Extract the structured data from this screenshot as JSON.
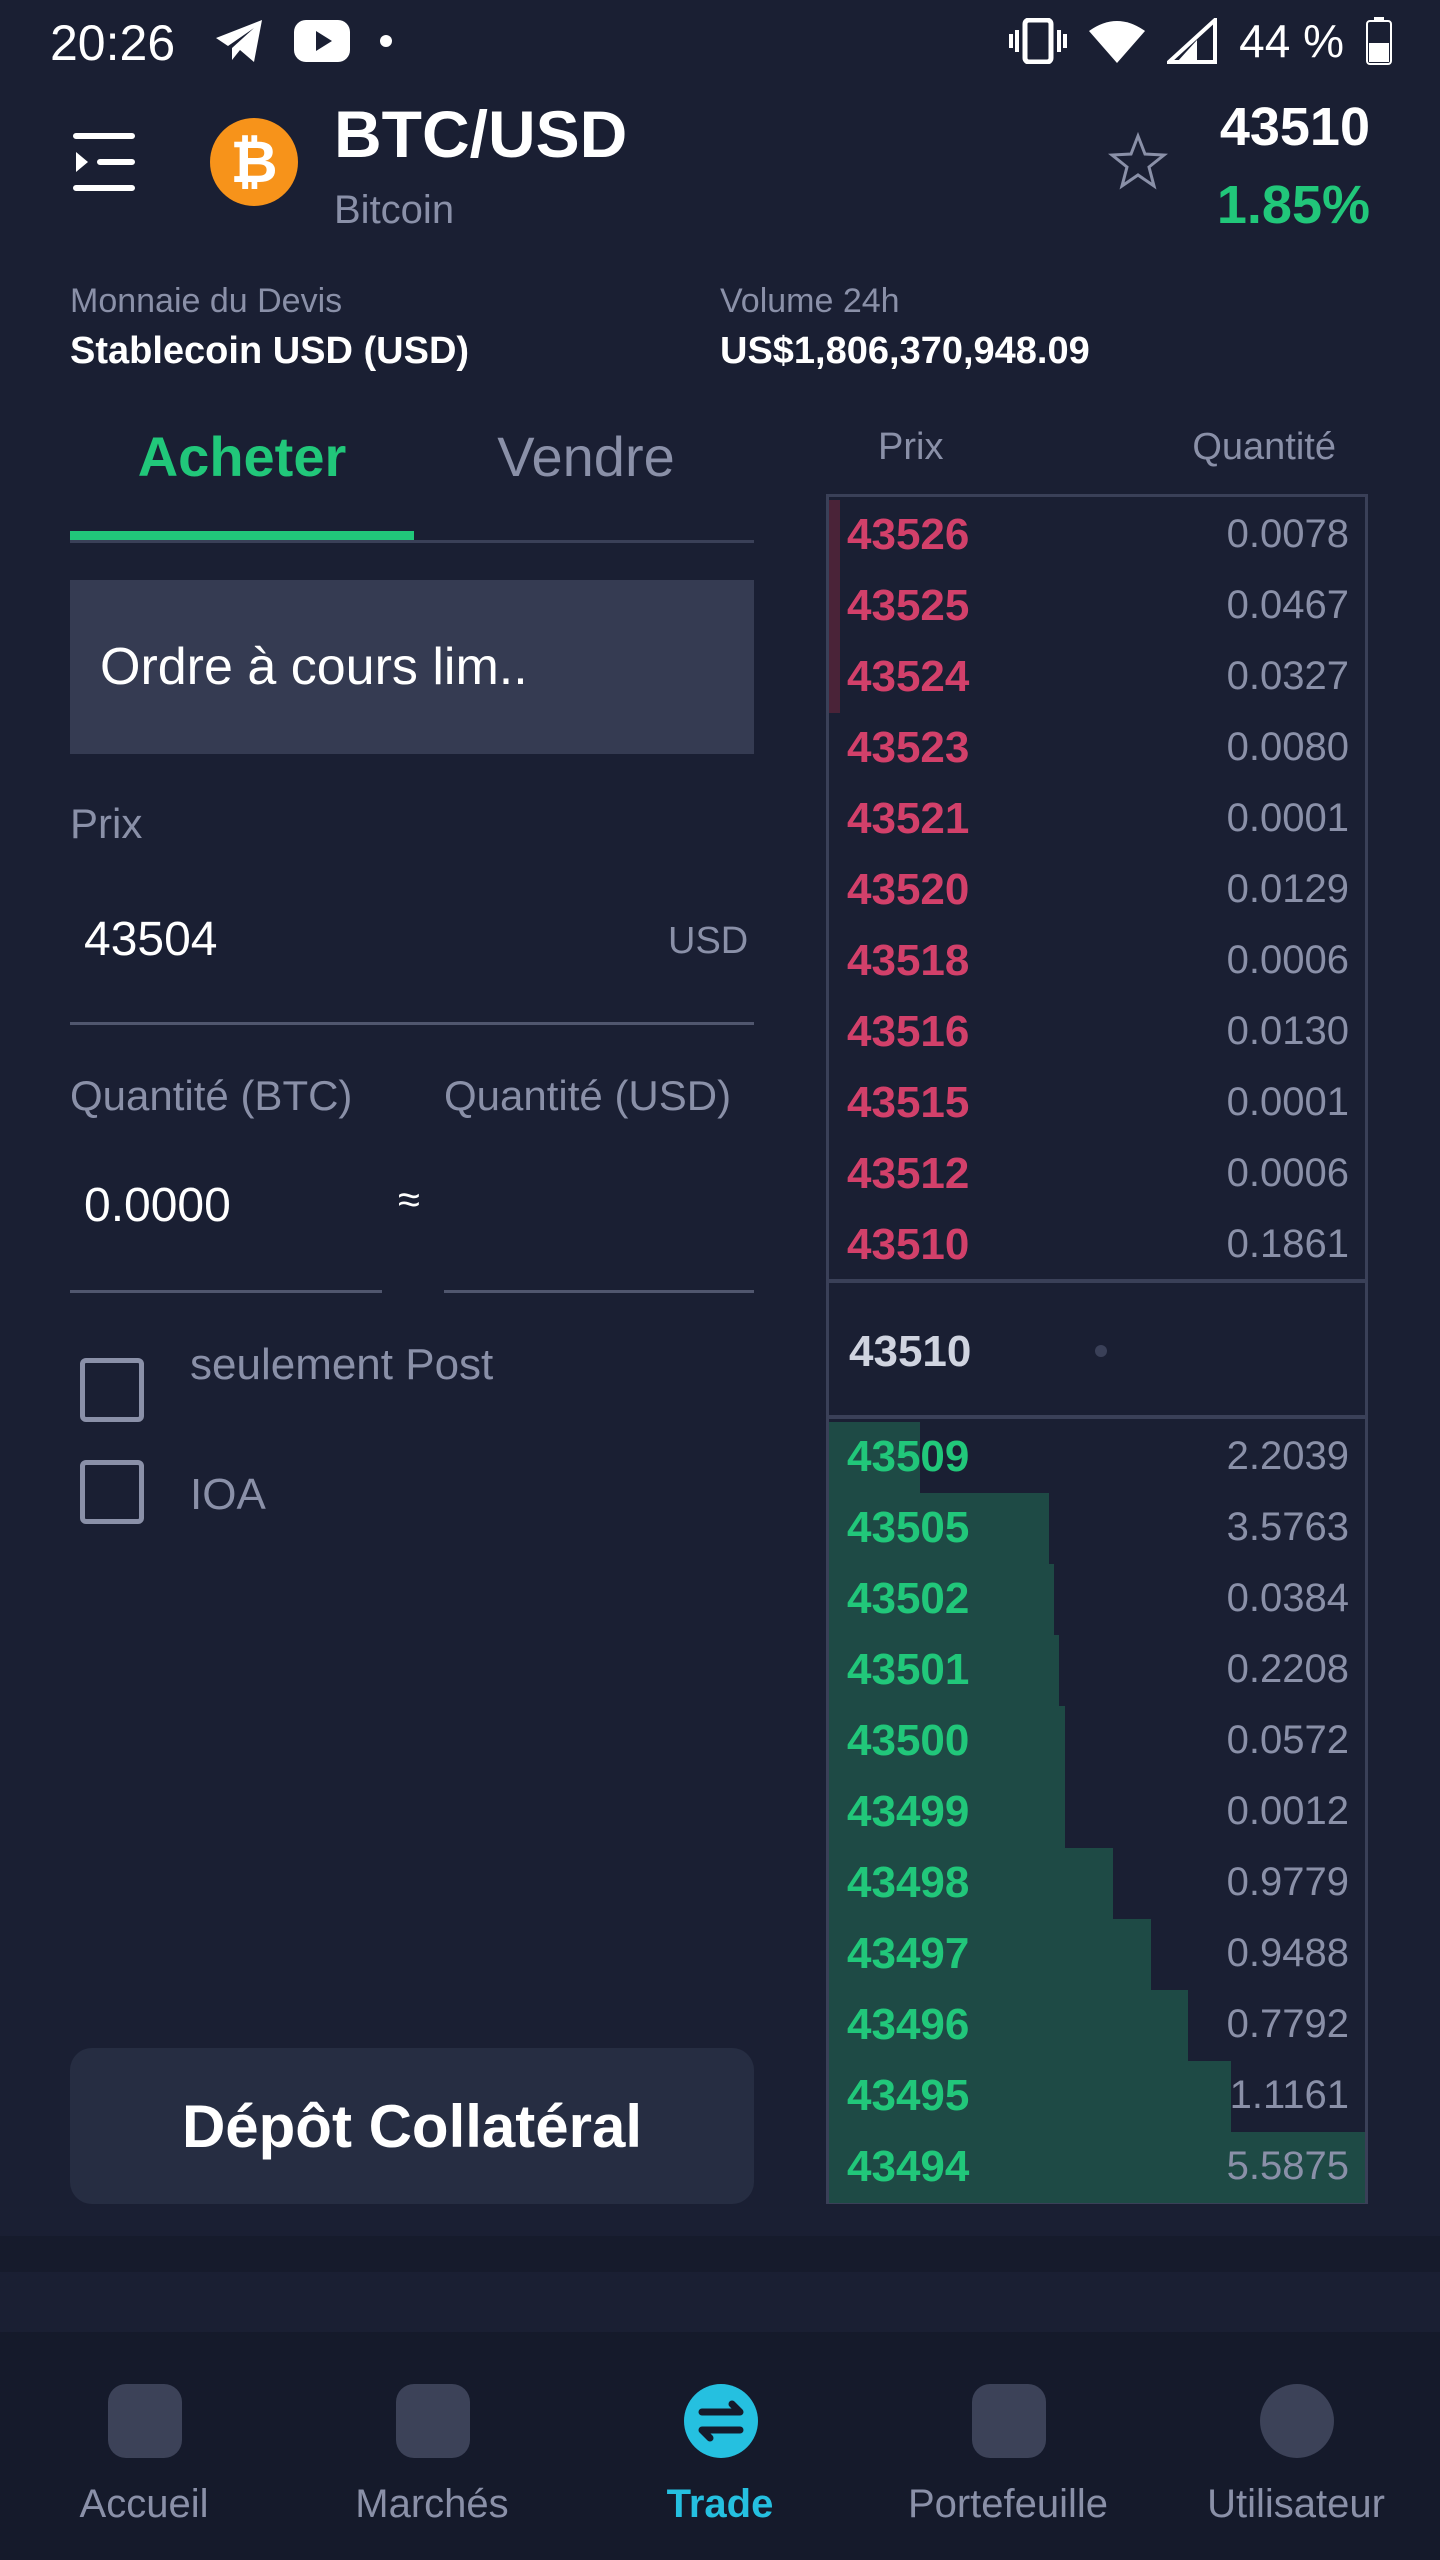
{
  "status_bar": {
    "time": "20:26",
    "battery": "44 %"
  },
  "header": {
    "pair": "BTC/USD",
    "coin_name": "Bitcoin",
    "last_price": "43510",
    "change": "1.85%",
    "quote_label": "Monnaie du Devis",
    "quote_value": "Stablecoin USD (USD)",
    "volume_label": "Volume 24h",
    "volume_value": "US$1,806,370,948.09"
  },
  "tabs": {
    "buy": "Acheter",
    "sell": "Vendre"
  },
  "form": {
    "order_type": "Ordre à cours lim..",
    "price_label": "Prix",
    "price_value": "43504",
    "price_unit": "USD",
    "qty_btc_label": "Quantité (BTC)",
    "qty_usd_label": "Quantité (USD)",
    "qty_btc_value": "0.0000",
    "approx": "≈",
    "post_only": "seulement Post",
    "ioc": "IOA",
    "deposit_button": "Dépôt Collatéral"
  },
  "orderbook": {
    "price_header": "Prix",
    "qty_header": "Quantité",
    "asks": [
      {
        "price": "43526",
        "qty": "0.0078",
        "depth": 0.02
      },
      {
        "price": "43525",
        "qty": "0.0467",
        "depth": 0.02
      },
      {
        "price": "43524",
        "qty": "0.0327",
        "depth": 0.02
      },
      {
        "price": "43523",
        "qty": "0.0080",
        "depth": 0.0
      },
      {
        "price": "43521",
        "qty": "0.0001",
        "depth": 0.0
      },
      {
        "price": "43520",
        "qty": "0.0129",
        "depth": 0.0
      },
      {
        "price": "43518",
        "qty": "0.0006",
        "depth": 0.0
      },
      {
        "price": "43516",
        "qty": "0.0130",
        "depth": 0.0
      },
      {
        "price": "43515",
        "qty": "0.0001",
        "depth": 0.0
      },
      {
        "price": "43512",
        "qty": "0.0006",
        "depth": 0.0
      },
      {
        "price": "43510",
        "qty": "0.1861",
        "depth": 0.0
      }
    ],
    "mid_price": "43510",
    "bids": [
      {
        "price": "43509",
        "qty": "2.2039",
        "depth": 0.17
      },
      {
        "price": "43505",
        "qty": "3.5763",
        "depth": 0.41
      },
      {
        "price": "43502",
        "qty": "0.0384",
        "depth": 0.42
      },
      {
        "price": "43501",
        "qty": "0.2208",
        "depth": 0.43
      },
      {
        "price": "43500",
        "qty": "0.0572",
        "depth": 0.44
      },
      {
        "price": "43499",
        "qty": "0.0012",
        "depth": 0.44
      },
      {
        "price": "43498",
        "qty": "0.9779",
        "depth": 0.53
      },
      {
        "price": "43497",
        "qty": "0.9488",
        "depth": 0.6
      },
      {
        "price": "43496",
        "qty": "0.7792",
        "depth": 0.67
      },
      {
        "price": "43495",
        "qty": "1.1161",
        "depth": 0.75
      },
      {
        "price": "43494",
        "qty": "5.5875",
        "depth": 1.0
      }
    ]
  },
  "nav": [
    {
      "label": "Accueil",
      "icon": "home-icon"
    },
    {
      "label": "Marchés",
      "icon": "markets-icon"
    },
    {
      "label": "Trade",
      "icon": "trade-icon"
    },
    {
      "label": "Portefeuille",
      "icon": "wallet-icon"
    },
    {
      "label": "Utilisateur",
      "icon": "user-icon"
    }
  ],
  "colors": {
    "accent": "#21c77a",
    "ask": "#d2406a",
    "nav_active": "#25c0e0",
    "coin": "#f7931a"
  }
}
